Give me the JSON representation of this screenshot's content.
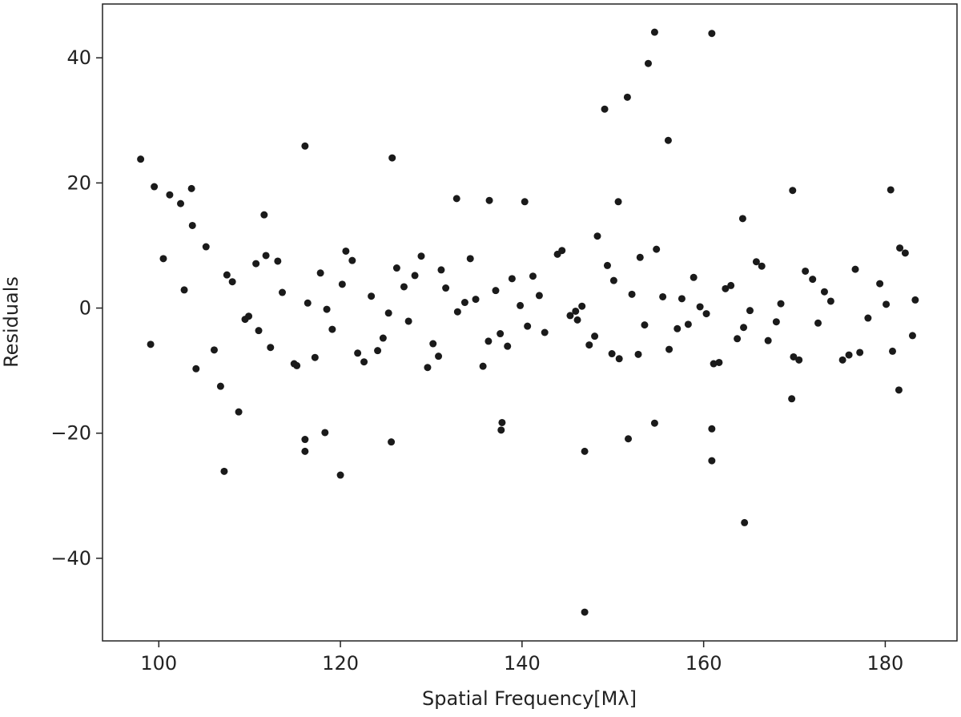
{
  "chart_data": {
    "type": "scatter",
    "xlabel": "Spatial Frequency[Mλ]",
    "ylabel": "Residuals",
    "color": "#1a1a1a",
    "xlim": [
      93.8,
      187.9
    ],
    "ylim": [
      -53.2,
      48.6
    ],
    "xticks": [
      100,
      120,
      140,
      160,
      180
    ],
    "yticks": [
      {
        "value": -40,
        "label": "−40"
      },
      {
        "value": -20,
        "label": "−20"
      },
      0,
      20,
      40
    ],
    "x": [
      105.2,
      106.8,
      108.1,
      109.5,
      110.7,
      112.3,
      113.6,
      114.9,
      116.4,
      117.8,
      119.1,
      120.6,
      121.9,
      123.4,
      124.7,
      126.2,
      127.5,
      128.9,
      130.2,
      131.6,
      132.9,
      134.3,
      135.7,
      137.1,
      138.4,
      139.8,
      141.2,
      142.5,
      143.9,
      145.3,
      146.6,
      148,
      149.4,
      150.7,
      152.1,
      153.5,
      154.8,
      156.2,
      157.6,
      158.9,
      160.3,
      161.7,
      163,
      164.4,
      165.8,
      167.1,
      168.5,
      169.9,
      171.2,
      172.6,
      174,
      175.3,
      176.7,
      178.1,
      179.4,
      180.8,
      182.2,
      183.3,
      104.1,
      107.5,
      109.9,
      111.8,
      115.2,
      118.5,
      121.3,
      124.1,
      127.0,
      129.6,
      131.1,
      133.7,
      136.3,
      138.9,
      140.6,
      144.4,
      145.9,
      147.4,
      150.1,
      152.8,
      155.5,
      158.3,
      161.1,
      162.4,
      165.1,
      166.4,
      170.5,
      173.3,
      177.2,
      181.6,
      183.0,
      102.8,
      106.1,
      111.0,
      113.1,
      117.2,
      120.2,
      122.6,
      125.3,
      128.2,
      130.8,
      134.9,
      137.6,
      141.9,
      146.1,
      149.9,
      153.0,
      157.1,
      159.6,
      163.7,
      168.0,
      172.0,
      176.0,
      180.1,
      98.0,
      99.5,
      99.1,
      100.5,
      101.2,
      102.4,
      103.6,
      103.7,
      107.2,
      108.8,
      111.6,
      116.1,
      116.1,
      116.1,
      118.3,
      120.0,
      125.7,
      125.6,
      132.8,
      136.4,
      137.8,
      137.7,
      140.3,
      149.1,
      153.9,
      151.6,
      154.6,
      156.1,
      160.9,
      146.9,
      146.9,
      164.5,
      160.9,
      160.9,
      151.7,
      154.6,
      169.8,
      180.6,
      181.5,
      169.7,
      164.3,
      148.3,
      150.6
    ],
    "values": [
      9.8,
      -12.5,
      4.2,
      -1.8,
      7.1,
      -6.3,
      2.5,
      -8.9,
      0.8,
      5.6,
      -3.4,
      9.1,
      -7.2,
      1.9,
      -4.8,
      6.4,
      -2.1,
      8.3,
      -5.7,
      3.2,
      -0.6,
      7.9,
      -9.3,
      2.8,
      -6.1,
      0.4,
      5.1,
      -3.9,
      8.6,
      -1.2,
      0.3,
      -4.5,
      6.8,
      -8.1,
      2.2,
      -2.7,
      9.4,
      -6.6,
      1.5,
      4.9,
      -0.9,
      -8.7,
      3.6,
      -3.1,
      7.4,
      -5.2,
      0.7,
      -7.8,
      5.9,
      -2.4,
      1.1,
      -8.3,
      6.2,
      -1.6,
      3.9,
      -6.9,
      8.8,
      1.3,
      -9.7,
      5.3,
      -1.3,
      8.4,
      -9.2,
      -0.2,
      7.6,
      -6.8,
      3.4,
      -9.5,
      6.1,
      0.9,
      -5.3,
      4.7,
      -2.9,
      9.2,
      -0.5,
      -5.9,
      4.4,
      -7.4,
      1.8,
      -2.6,
      -8.9,
      3.1,
      -0.4,
      6.7,
      -8.3,
      2.6,
      -7.1,
      9.6,
      -4.4,
      2.9,
      -6.7,
      -3.6,
      7.5,
      -7.9,
      3.8,
      -8.6,
      -0.8,
      5.2,
      -7.7,
      1.4,
      -4.1,
      2.0,
      -1.9,
      -7.3,
      8.1,
      -3.3,
      0.2,
      -4.9,
      -2.2,
      4.6,
      -7.5,
      0.6,
      23.8,
      19.4,
      -5.8,
      7.9,
      18.1,
      16.7,
      19.1,
      13.2,
      -26.1,
      -16.6,
      14.9,
      25.9,
      -21.0,
      -22.9,
      -19.9,
      -26.7,
      24.0,
      -21.4,
      17.5,
      17.2,
      -18.3,
      -19.5,
      17.0,
      31.8,
      39.1,
      33.7,
      44.1,
      26.8,
      43.9,
      -22.9,
      -48.6,
      -34.3,
      -24.4,
      -19.3,
      -20.9,
      -18.4,
      18.8,
      18.9,
      -13.1,
      -14.5,
      14.3,
      11.5,
      17.0
    ]
  }
}
